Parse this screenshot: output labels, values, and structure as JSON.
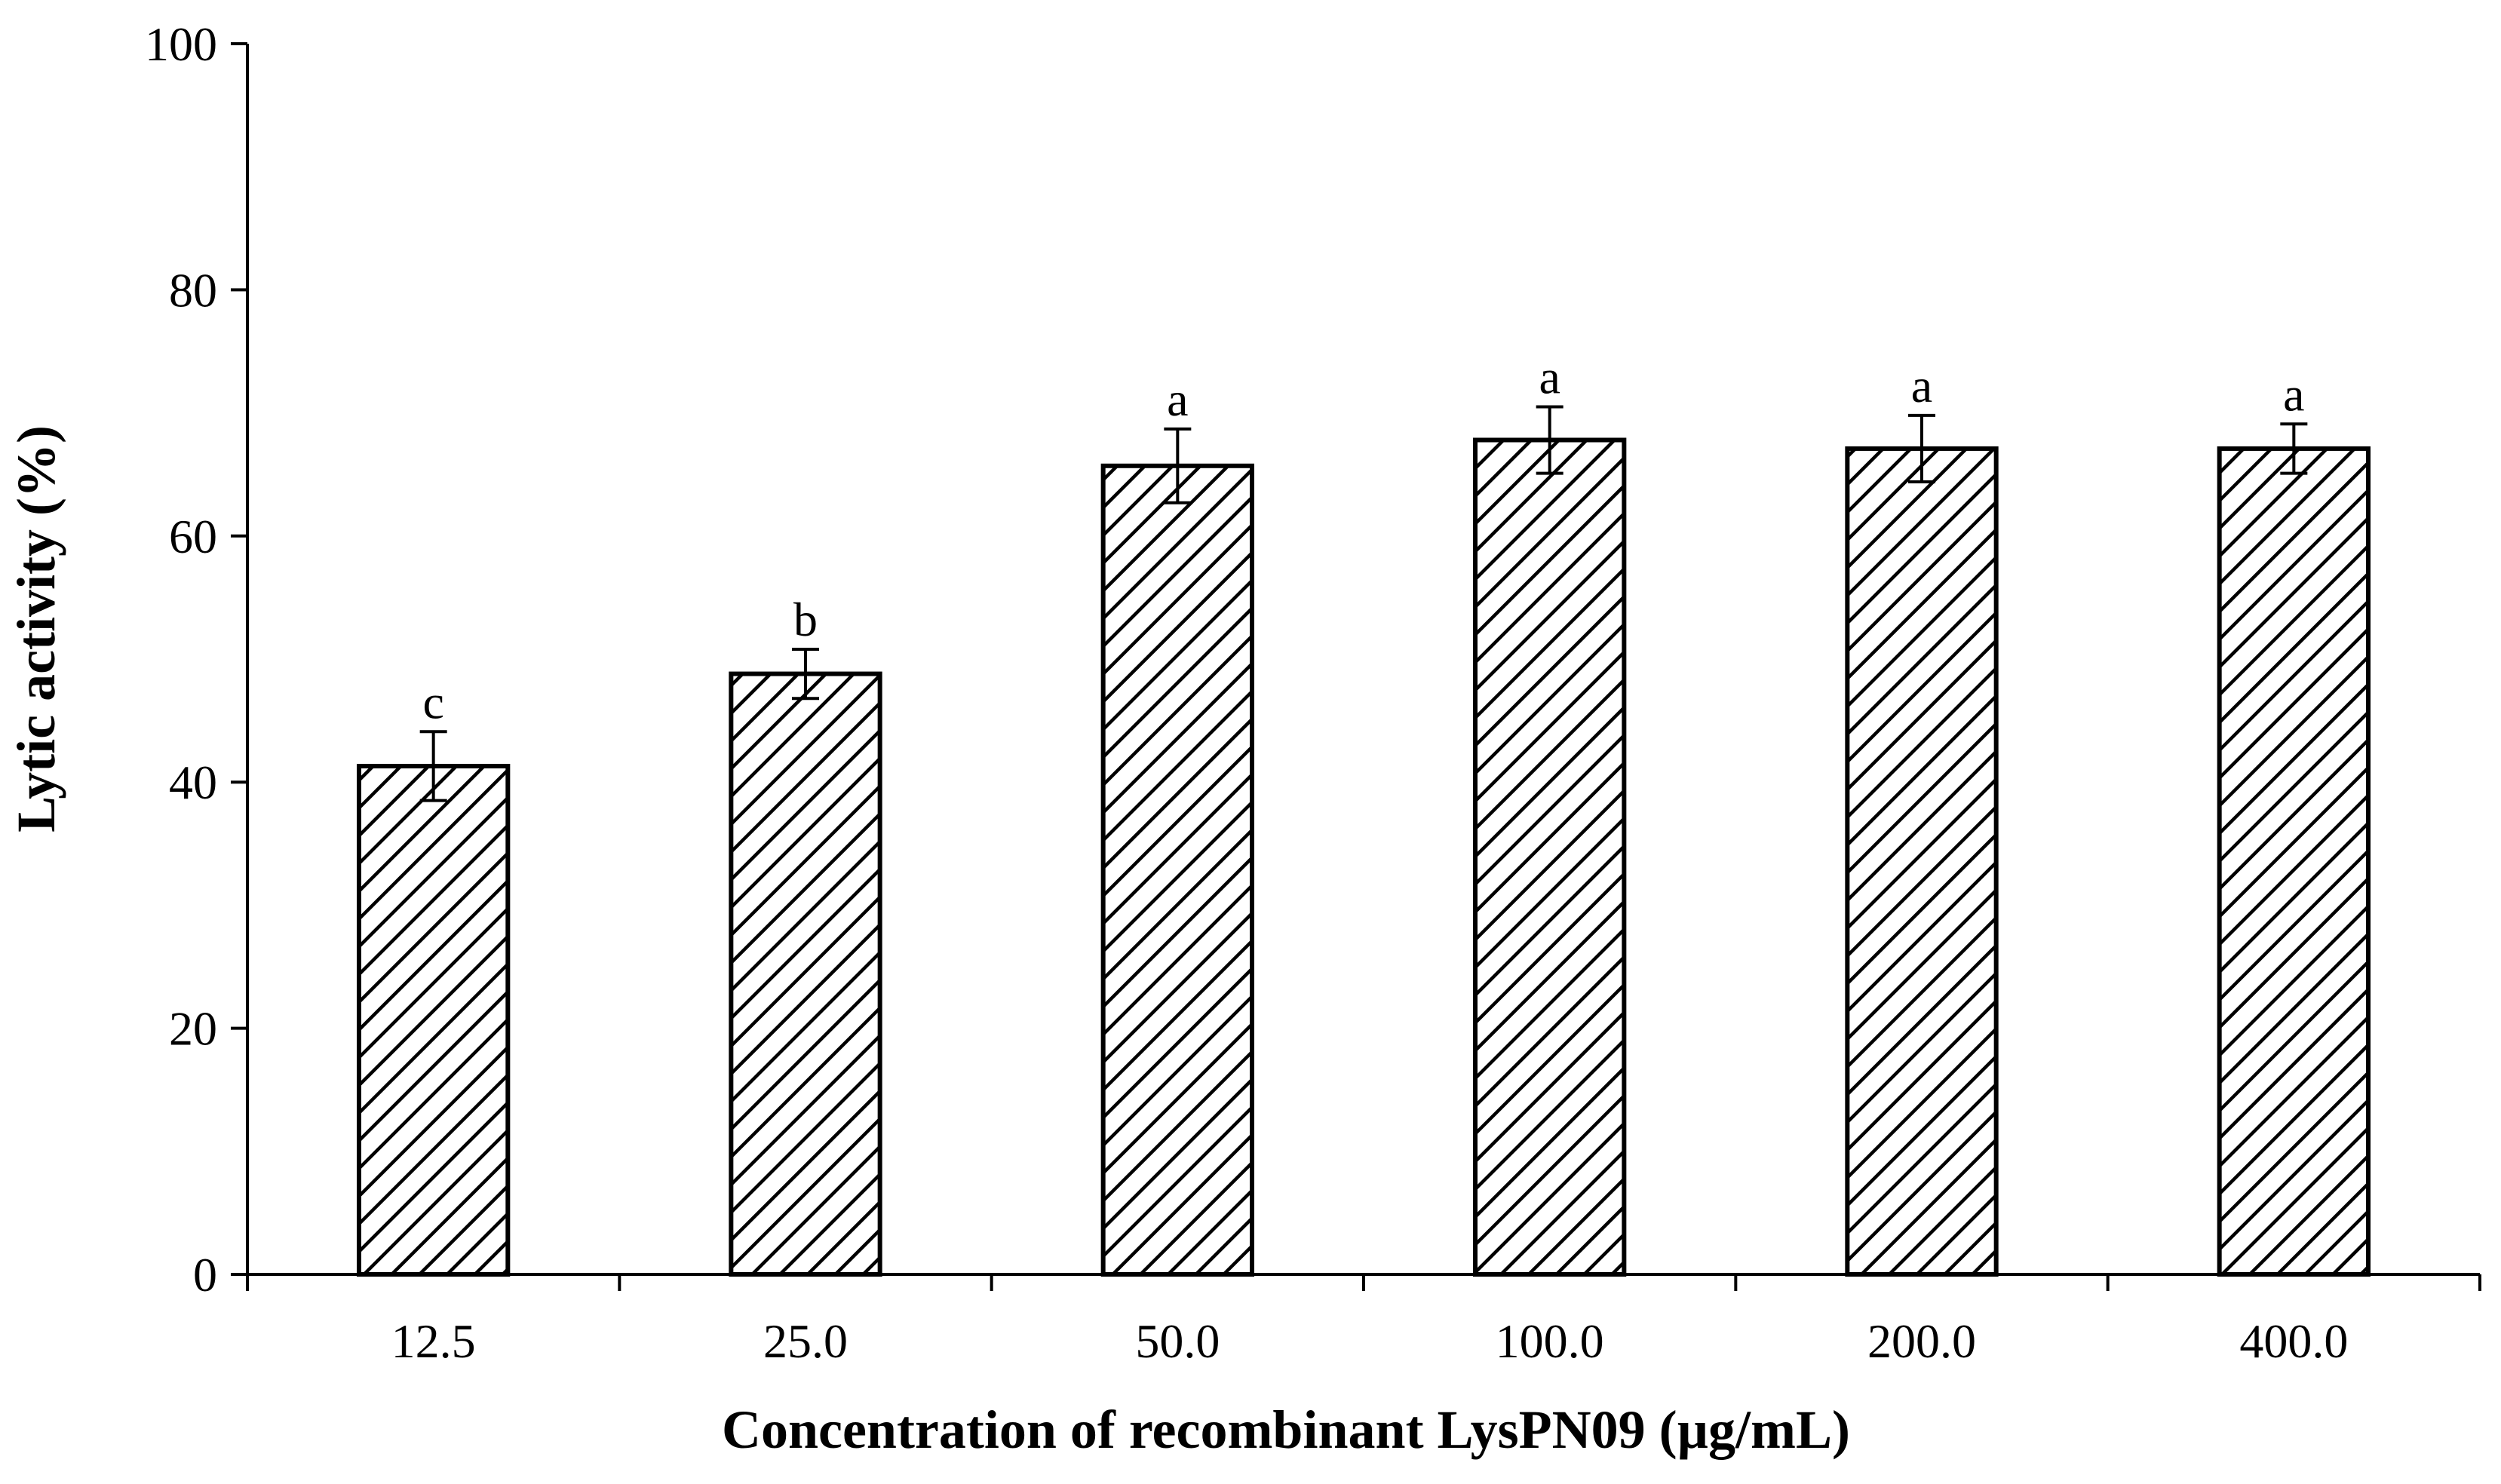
{
  "chart_data": {
    "type": "bar",
    "title": "",
    "xlabel": "Concentration of recombinant LysPN09 (µg/mL)",
    "ylabel": "Lytic activity (%)",
    "categories": [
      "12.5",
      "25.0",
      "50.0",
      "100.0",
      "200.0",
      "400.0"
    ],
    "values": [
      41.3,
      48.8,
      65.7,
      67.8,
      67.1,
      67.1
    ],
    "errors": [
      2.8,
      2.0,
      3.0,
      2.7,
      2.7,
      2.0
    ],
    "significance": [
      "c",
      "b",
      "a",
      "a",
      "a",
      "a"
    ],
    "ylim": [
      0,
      100
    ],
    "yticks": [
      "0",
      "20",
      "40",
      "60",
      "80",
      "100"
    ],
    "grid": false,
    "legend": "none",
    "colors": {
      "bar_fill_pattern": "#000000",
      "bar_background": "#ffffff",
      "axis": "#000000"
    }
  }
}
